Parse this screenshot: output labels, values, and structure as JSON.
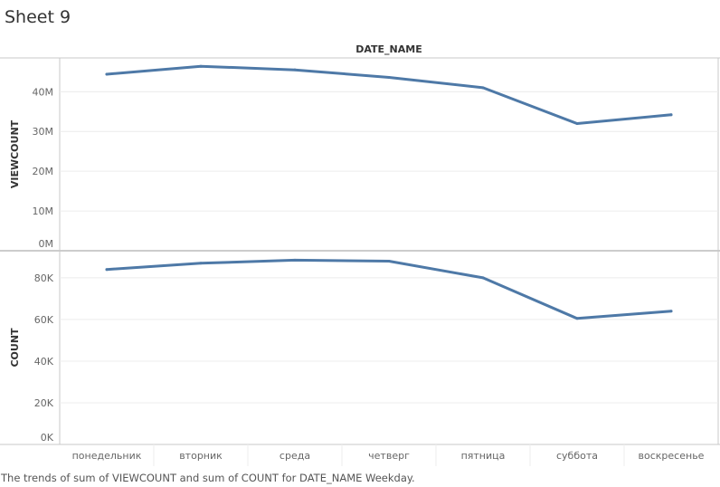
{
  "sheet": {
    "title": "Sheet 9",
    "caption": "The trends of sum of VIEWCOUNT and sum of COUNT for DATE_NAME Weekday."
  },
  "colors": {
    "line": "#4e79a7",
    "grid": "#ececec",
    "axis": "#c8c8c8"
  },
  "chart_data": {
    "type": "line",
    "column_header": "DATE_NAME",
    "categories": [
      "понедельник",
      "вторник",
      "среда",
      "четверг",
      "пятница",
      "суббота",
      "воскресенье"
    ],
    "panes": [
      {
        "ylabel": "VIEWCOUNT",
        "ylim": [
          0,
          48500000
        ],
        "ticks": [
          0,
          10000000,
          20000000,
          30000000,
          40000000
        ],
        "tick_labels": [
          "0M",
          "10M",
          "20M",
          "30M",
          "40M"
        ],
        "values": [
          44400000,
          46400000,
          45500000,
          43600000,
          41000000,
          32000000,
          34200000
        ]
      },
      {
        "ylabel": "COUNT",
        "ylim": [
          0,
          93000
        ],
        "ticks": [
          0,
          20000,
          40000,
          60000,
          80000
        ],
        "tick_labels": [
          "0K",
          "20K",
          "40K",
          "60K",
          "80K"
        ],
        "values": [
          84000,
          87000,
          88500,
          88000,
          80000,
          60500,
          64000
        ]
      }
    ],
    "grid": true,
    "legend": "none"
  }
}
